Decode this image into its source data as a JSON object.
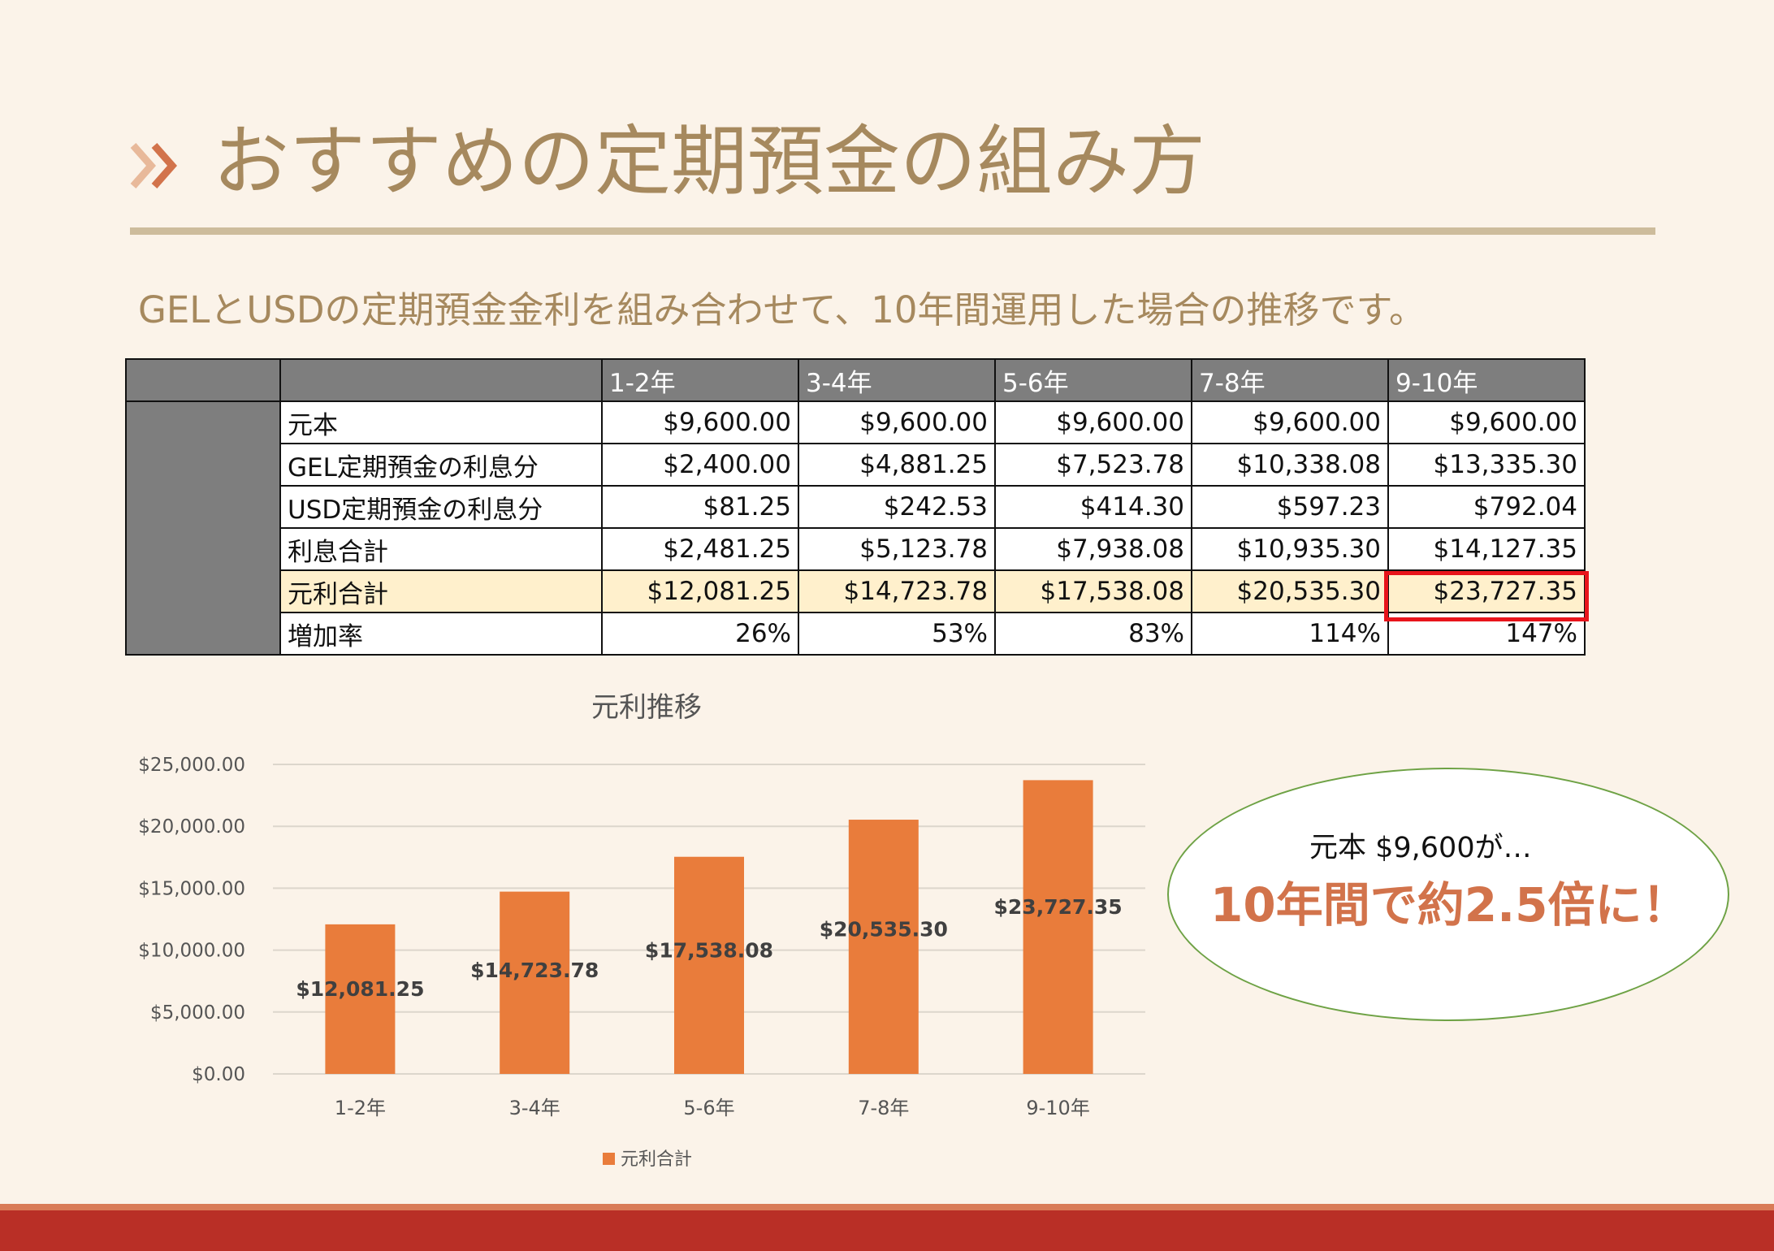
{
  "slide": {
    "title": "おすすめの定期預金の組み方",
    "subtitle": "GELとUSDの定期預金金利を組み合わせて、10年間運用した場合の推移です。",
    "colors": {
      "background": "#fbf3e9",
      "title": "#a6895e",
      "accent": "#d2734b",
      "bar": "#e97c3b",
      "footer": "#b92f26",
      "highlight_row": "#fff0cc",
      "highlight_box": "#e8141b"
    }
  },
  "table": {
    "headers": [
      "",
      "",
      "1-2年",
      "3-4年",
      "5-6年",
      "7-8年",
      "9-10年"
    ],
    "rows": [
      {
        "label": "元本",
        "values": [
          "$9,600.00",
          "$9,600.00",
          "$9,600.00",
          "$9,600.00",
          "$9,600.00"
        ]
      },
      {
        "label": "GEL定期預金の利息分",
        "values": [
          "$2,400.00",
          "$4,881.25",
          "$7,523.78",
          "$10,338.08",
          "$13,335.30"
        ]
      },
      {
        "label": "USD定期預金の利息分",
        "values": [
          "$81.25",
          "$242.53",
          "$414.30",
          "$597.23",
          "$792.04"
        ]
      },
      {
        "label": "利息合計",
        "values": [
          "$2,481.25",
          "$5,123.78",
          "$7,938.08",
          "$10,935.30",
          "$14,127.35"
        ]
      },
      {
        "label": "元利合計",
        "values": [
          "$12,081.25",
          "$14,723.78",
          "$17,538.08",
          "$20,535.30",
          "$23,727.35"
        ]
      },
      {
        "label": "増加率",
        "values": [
          "26%",
          "53%",
          "83%",
          "114%",
          "147%"
        ]
      }
    ]
  },
  "chart_data": {
    "type": "bar",
    "title": "元利推移",
    "categories": [
      "1-2年",
      "3-4年",
      "5-6年",
      "7-8年",
      "9-10年"
    ],
    "series": [
      {
        "name": "元利合計",
        "values": [
          12081.25,
          14723.78,
          17538.08,
          20535.3,
          23727.35
        ]
      }
    ],
    "data_labels": [
      "$12,081.25",
      "$14,723.78",
      "$17,538.08",
      "$20,535.30",
      "$23,727.35"
    ],
    "ytick_labels": [
      "$0.00",
      "$5,000.00",
      "$10,000.00",
      "$15,000.00",
      "$20,000.00",
      "$25,000.00"
    ],
    "ytick_values": [
      0,
      5000,
      10000,
      15000,
      20000,
      25000
    ],
    "ylim": [
      0,
      25000
    ],
    "xlabel": "",
    "ylabel": "",
    "grid": true,
    "legend": "bottom"
  },
  "callout": {
    "line1": "元本 $9,600が…",
    "line2": "10年間で約2.5倍に！"
  }
}
